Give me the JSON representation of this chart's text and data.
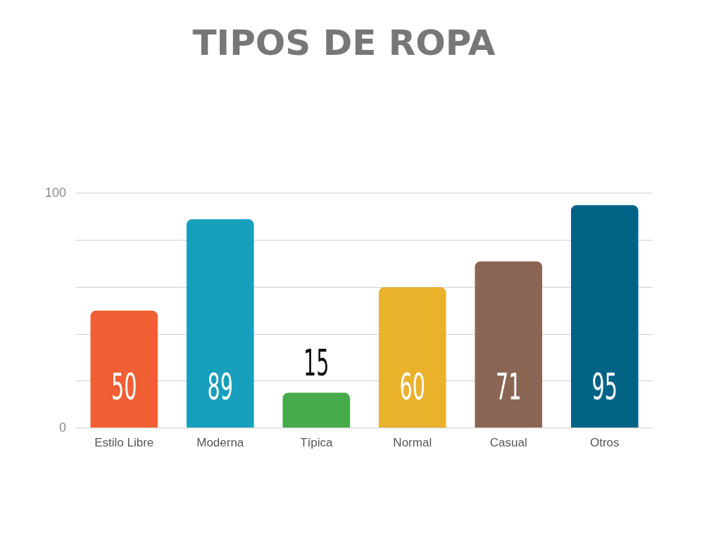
{
  "chart_data": {
    "type": "bar",
    "title": "TIPOS DE ROPA",
    "categories": [
      "Estilo Libre",
      "Moderna",
      "Típica",
      "Normal",
      "Casual",
      "Otros"
    ],
    "values": [
      50,
      89,
      15,
      60,
      71,
      95
    ],
    "colors": [
      "#f05f33",
      "#179fbd",
      "#46ab4a",
      "#eab12a",
      "#8b6553",
      "#006386"
    ],
    "ylim": [
      0,
      100
    ],
    "yticks": [
      0,
      {
        "value": 20,
        "label": null
      },
      {
        "value": 40,
        "label": null
      },
      {
        "value": 60,
        "label": null
      },
      {
        "value": 80,
        "label": null
      },
      100
    ],
    "grid": "y",
    "legend": false,
    "data_labels": true
  }
}
